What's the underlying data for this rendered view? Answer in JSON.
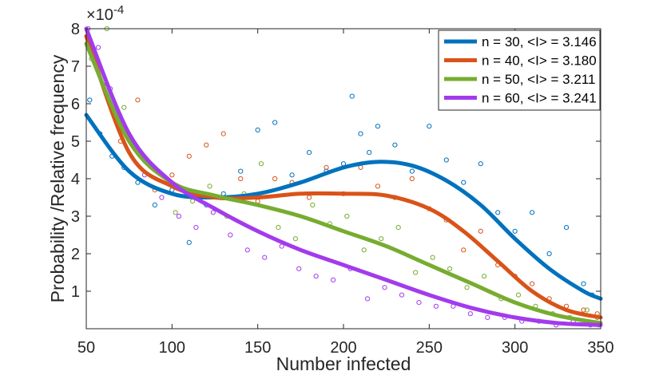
{
  "chart_data": {
    "type": "scatter",
    "title": "",
    "xlabel": "Number infected",
    "ylabel": "Probability /Relative frequency",
    "y_exponent_label": "×10",
    "y_exponent_power": "-4",
    "xlim": [
      50,
      350
    ],
    "ylim": [
      0,
      8
    ],
    "xticks": [
      50,
      100,
      150,
      200,
      250,
      300,
      350
    ],
    "yticks": [
      1,
      2,
      3,
      4,
      5,
      6,
      7,
      8
    ],
    "grid": false,
    "legend_position": "top-right",
    "series": [
      {
        "name": "n = 30, <I> = 3.146",
        "color": "#0072BD",
        "fit_x": [
          50,
          75,
          100,
          125,
          150,
          175,
          200,
          220,
          240,
          260,
          280,
          300,
          320,
          340,
          350
        ],
        "fit_y": [
          5.7,
          4.2,
          3.6,
          3.5,
          3.6,
          3.9,
          4.3,
          4.45,
          4.35,
          3.95,
          3.3,
          2.4,
          1.6,
          1.0,
          0.8
        ],
        "scatter_x": [
          52,
          58,
          65,
          72,
          80,
          90,
          100,
          110,
          120,
          130,
          140,
          150,
          160,
          170,
          180,
          190,
          200,
          205,
          210,
          215,
          220,
          230,
          240,
          250,
          260,
          270,
          280,
          290,
          300,
          310,
          320,
          330,
          340,
          345
        ],
        "scatter_y": [
          6.1,
          5.2,
          4.6,
          4.3,
          3.9,
          3.3,
          3.7,
          2.3,
          3.3,
          3.6,
          4.2,
          5.3,
          5.5,
          4.1,
          4.7,
          4.2,
          4.4,
          6.2,
          5.2,
          4.7,
          5.4,
          4.9,
          4.2,
          5.4,
          4.5,
          3.9,
          4.4,
          3.1,
          2.6,
          3.1,
          2.0,
          2.7,
          1.2,
          0.9
        ]
      },
      {
        "name": "n = 40, <I> = 3.180",
        "color": "#D95319",
        "fit_x": [
          50,
          75,
          100,
          125,
          150,
          175,
          200,
          225,
          250,
          270,
          290,
          310,
          330,
          350
        ],
        "fit_y": [
          7.8,
          4.7,
          3.8,
          3.5,
          3.5,
          3.6,
          3.6,
          3.55,
          3.2,
          2.6,
          1.8,
          1.0,
          0.5,
          0.3
        ],
        "scatter_x": [
          52,
          60,
          70,
          80,
          90,
          100,
          110,
          120,
          130,
          140,
          150,
          160,
          170,
          180,
          190,
          200,
          210,
          220,
          230,
          240,
          250,
          260,
          270,
          280,
          290,
          300,
          310,
          320,
          330,
          340,
          348
        ],
        "scatter_y": [
          7.7,
          6.5,
          5.0,
          6.1,
          3.7,
          4.1,
          4.6,
          4.9,
          5.2,
          4.0,
          3.4,
          4.0,
          3.9,
          3.5,
          4.3,
          3.6,
          4.3,
          3.8,
          3.5,
          4.0,
          3.2,
          2.9,
          2.1,
          2.6,
          1.7,
          1.4,
          1.2,
          0.8,
          0.6,
          0.5,
          0.4
        ]
      },
      {
        "name": "n = 50, <I> = 3.211",
        "color": "#77AC30",
        "fit_x": [
          50,
          75,
          100,
          125,
          150,
          175,
          200,
          225,
          250,
          275,
          300,
          325,
          350
        ],
        "fit_y": [
          7.6,
          5.0,
          3.9,
          3.55,
          3.3,
          3.0,
          2.6,
          2.2,
          1.7,
          1.2,
          0.7,
          0.35,
          0.15
        ],
        "scatter_x": [
          53,
          62,
          72,
          82,
          92,
          102,
          112,
          122,
          132,
          142,
          152,
          162,
          172,
          182,
          192,
          202,
          212,
          222,
          232,
          242,
          252,
          262,
          272,
          282,
          292,
          302,
          312,
          322,
          332,
          342,
          348
        ],
        "scatter_y": [
          7.2,
          8.0,
          5.9,
          4.6,
          4.2,
          3.1,
          3.4,
          3.8,
          3.0,
          3.6,
          4.4,
          2.7,
          2.4,
          3.3,
          2.8,
          3.0,
          2.1,
          2.4,
          2.7,
          1.5,
          1.9,
          1.6,
          1.1,
          1.4,
          0.8,
          0.9,
          0.6,
          0.4,
          0.3,
          0.5,
          0.3
        ]
      },
      {
        "name": "n = 60, <I> = 3.241",
        "color": "#A23BEC",
        "fit_x": [
          50,
          75,
          100,
          125,
          150,
          175,
          200,
          225,
          250,
          275,
          300,
          325,
          350
        ],
        "fit_y": [
          8.0,
          5.2,
          3.9,
          3.2,
          2.6,
          2.1,
          1.7,
          1.3,
          0.9,
          0.55,
          0.3,
          0.15,
          0.1
        ],
        "scatter_x": [
          51,
          57,
          64,
          74,
          84,
          94,
          104,
          114,
          124,
          134,
          144,
          154,
          164,
          174,
          184,
          194,
          204,
          214,
          224,
          234,
          244,
          254,
          264,
          274,
          284,
          294,
          304,
          314,
          324,
          334,
          344,
          349
        ],
        "scatter_y": [
          8.0,
          7.5,
          6.4,
          5.2,
          4.1,
          3.5,
          3.0,
          2.7,
          3.1,
          2.5,
          2.1,
          1.9,
          2.2,
          1.6,
          1.4,
          1.3,
          1.6,
          0.8,
          1.1,
          0.9,
          0.7,
          0.6,
          0.6,
          0.4,
          0.3,
          0.3,
          0.2,
          0.2,
          0.1,
          0.2,
          0.1,
          0.1
        ]
      }
    ]
  }
}
